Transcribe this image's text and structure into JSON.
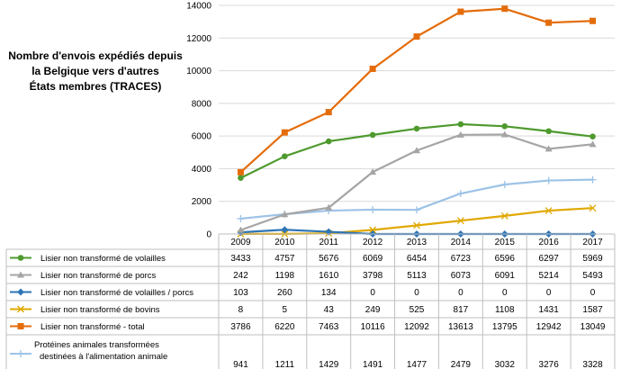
{
  "chart_data": {
    "type": "line",
    "title_lines": [
      "Nombre d'envois expédiés depuis",
      "la Belgique vers d'autres",
      "États membres (TRACES)"
    ],
    "categories": [
      "2009",
      "2010",
      "2011",
      "2012",
      "2013",
      "2014",
      "2015",
      "2016",
      "2017"
    ],
    "ylim": [
      0,
      14000
    ],
    "yticks": [
      "0",
      "2000",
      "4000",
      "6000",
      "8000",
      "10000",
      "12000",
      "14000"
    ],
    "grid": true,
    "legend_placement": "data-table",
    "series": [
      {
        "name": "Lisier non transformé de volailles",
        "color": "#4e9a2e",
        "marker": "circle",
        "values": [
          3433,
          4757,
          5676,
          6069,
          6454,
          6723,
          6596,
          6297,
          5969
        ]
      },
      {
        "name": "Lisier non transformé de porcs",
        "color": "#a5a5a5",
        "marker": "triangle",
        "values": [
          242,
          1198,
          1610,
          3798,
          5113,
          6073,
          6091,
          5214,
          5493
        ]
      },
      {
        "name": "Lisier non transformé de volailles / porcs",
        "color": "#2e75b6",
        "marker": "diamond",
        "values": [
          103,
          260,
          134,
          0,
          0,
          0,
          0,
          0,
          0
        ]
      },
      {
        "name": "Lisier non transformé de bovins",
        "color": "#e0a800",
        "marker": "x",
        "values": [
          8,
          5,
          43,
          249,
          525,
          817,
          1108,
          1431,
          1587
        ]
      },
      {
        "name": "Lisier non transformé - total",
        "color": "#e46c0a",
        "marker": "square",
        "values": [
          3786,
          6220,
          7463,
          10116,
          12092,
          13613,
          13795,
          12942,
          13049
        ]
      },
      {
        "name": "Protéines animales transformées destinées à l'alimentation animale",
        "color": "#9dc3e6",
        "marker": "plus",
        "values": [
          941,
          1211,
          1429,
          1491,
          1477,
          2479,
          3032,
          3276,
          3328
        ],
        "label_lines": [
          " Protéines animales transformées",
          "destinées à l'alimentation animale"
        ]
      }
    ]
  }
}
